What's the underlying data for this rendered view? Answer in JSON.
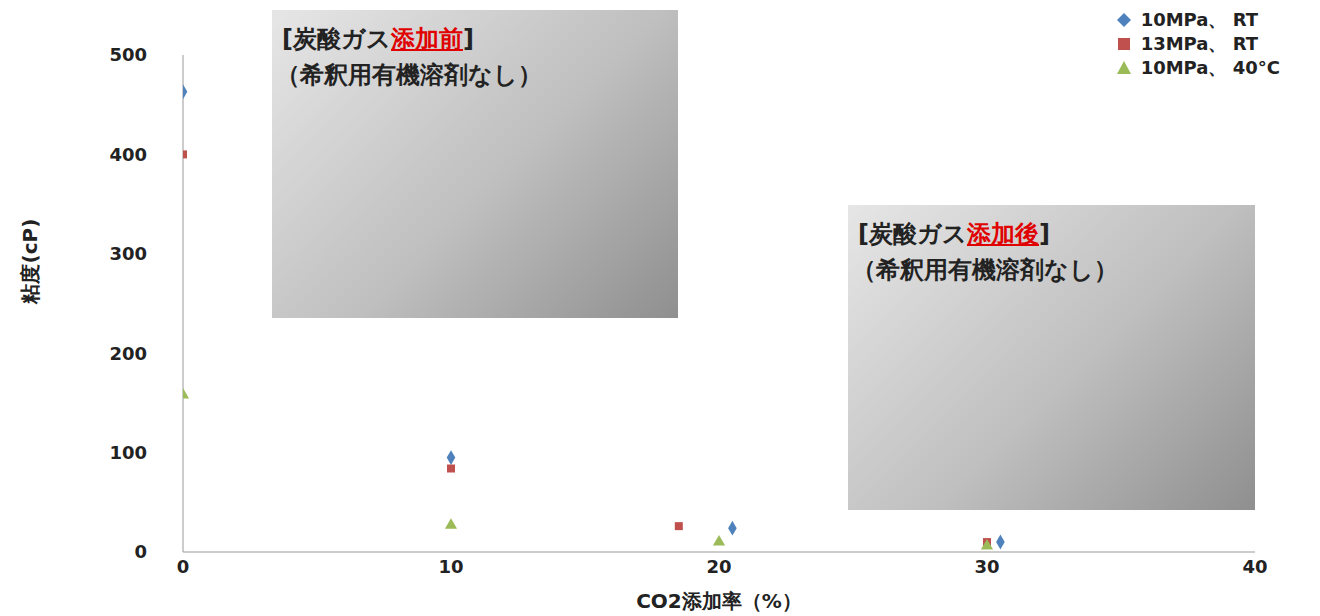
{
  "chart_data": {
    "type": "scatter",
    "x_label": "CO2添加率（%）",
    "y_label": "粘度(cP)",
    "xlim": [
      0,
      40
    ],
    "xticks": [
      0,
      10,
      20,
      30,
      40
    ],
    "ylim": [
      0,
      500
    ],
    "yticks": [
      0,
      100,
      200,
      300,
      400,
      500
    ],
    "grid": false,
    "legend": "upper right",
    "series": [
      {
        "name": "10MPa、 RT",
        "color": "#4f81bd",
        "marker": "diamond",
        "x": [
          0,
          10,
          20.5,
          30.5
        ],
        "values": [
          463,
          95,
          24,
          10
        ]
      },
      {
        "name": "13MPa、 RT",
        "color": "#c0504d",
        "marker": "square",
        "x": [
          0,
          10,
          18.5,
          30
        ],
        "values": [
          400,
          84,
          26,
          10
        ]
      },
      {
        "name": "10MPa、 40°C",
        "color": "#9bbb59",
        "marker": "triangle",
        "x": [
          0,
          10,
          20,
          30
        ],
        "values": [
          158,
          27,
          10,
          6
        ]
      }
    ],
    "annotations": [
      {
        "text": "[炭酸ガス添加前]",
        "highlight": "添加前",
        "subtext": "（希釈用有機溶剤なし）"
      },
      {
        "text": "[炭酸ガス添加後]",
        "highlight": "添加後",
        "subtext": "（希釈用有機溶剤なし）"
      }
    ]
  }
}
